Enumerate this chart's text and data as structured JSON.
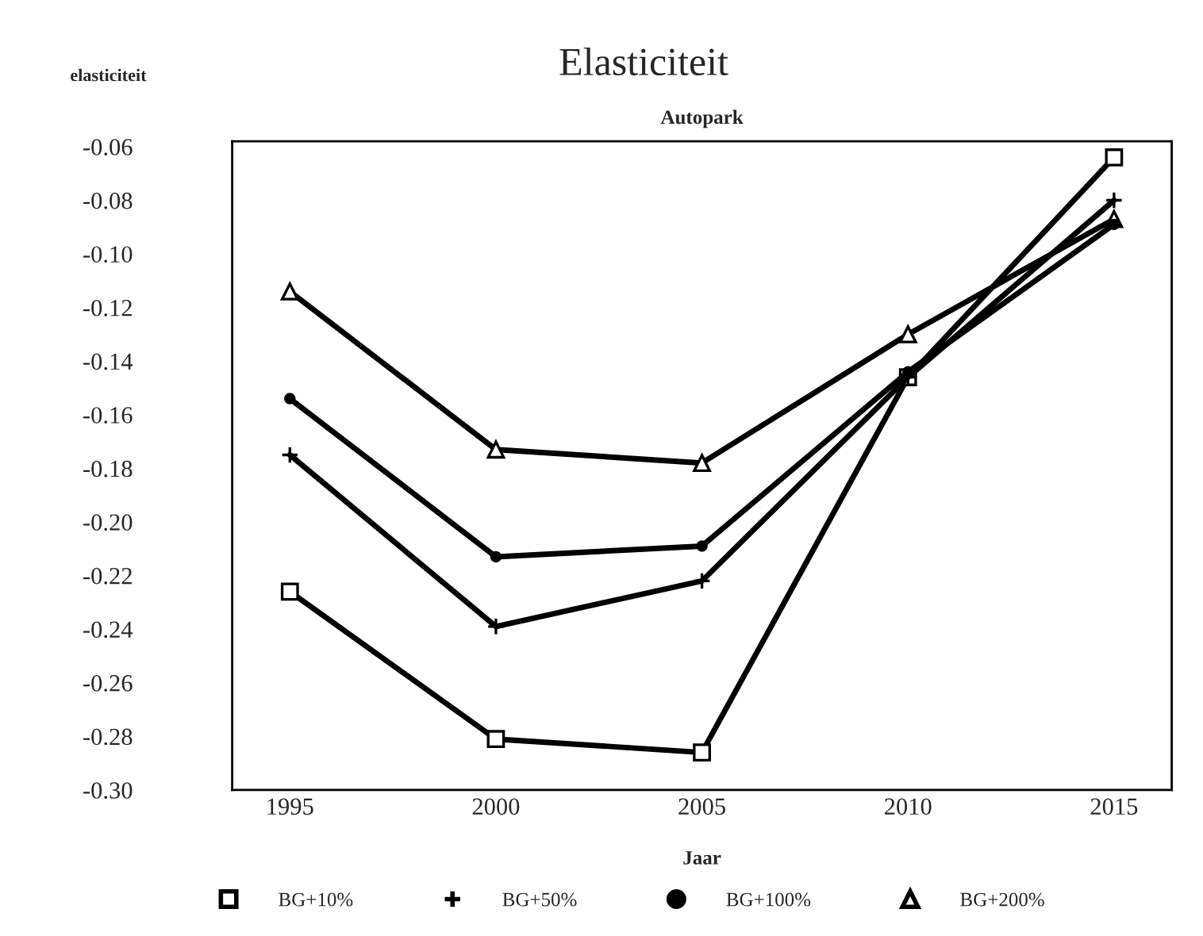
{
  "chart_data": {
    "type": "line",
    "title": "Elasticiteit",
    "subtitle": "Autopark",
    "xlabel": "Jaar",
    "ylabel": "elasticiteit",
    "x": [
      1995,
      2000,
      2005,
      2010,
      2015
    ],
    "series": [
      {
        "name": "BG+10%",
        "color": "#000000",
        "marker": "square",
        "values": [
          -0.226,
          -0.281,
          -0.286,
          -0.146,
          -0.064
        ]
      },
      {
        "name": "BG+50%",
        "color": "#000000",
        "marker": "cross",
        "values": [
          -0.175,
          -0.239,
          -0.222,
          -0.146,
          -0.08
        ]
      },
      {
        "name": "BG+100%",
        "color": "#000000",
        "marker": "circle",
        "values": [
          -0.154,
          -0.213,
          -0.209,
          -0.144,
          -0.089
        ]
      },
      {
        "name": "BG+200%",
        "color": "#000000",
        "marker": "triangle",
        "values": [
          -0.114,
          -0.173,
          -0.178,
          -0.13,
          -0.087
        ]
      }
    ],
    "xlim": [
      1993.6,
      2016.4
    ],
    "xticks": [
      1995,
      2000,
      2005,
      2010,
      2015
    ],
    "ylim": [
      -0.3,
      -0.058
    ],
    "yticks": [
      {
        "value": -0.06,
        "label": "-0.06"
      },
      {
        "value": -0.08,
        "label": "-0.08"
      },
      {
        "value": -0.1,
        "label": "-0.10"
      },
      {
        "value": -0.12,
        "label": "-0.12"
      },
      {
        "value": -0.14,
        "label": "-0.14"
      },
      {
        "value": -0.16,
        "label": "-0.16"
      },
      {
        "value": -0.18,
        "label": "-0.18"
      },
      {
        "value": -0.2,
        "label": "-0.20"
      },
      {
        "value": -0.22,
        "label": "-0.22"
      },
      {
        "value": -0.24,
        "label": "-0.24"
      },
      {
        "value": -0.26,
        "label": "-0.26"
      },
      {
        "value": -0.28,
        "label": "-0.28"
      },
      {
        "value": -0.3,
        "label": "-0.30"
      }
    ],
    "grid": false,
    "legend": "bottom",
    "line_style": "solid"
  }
}
